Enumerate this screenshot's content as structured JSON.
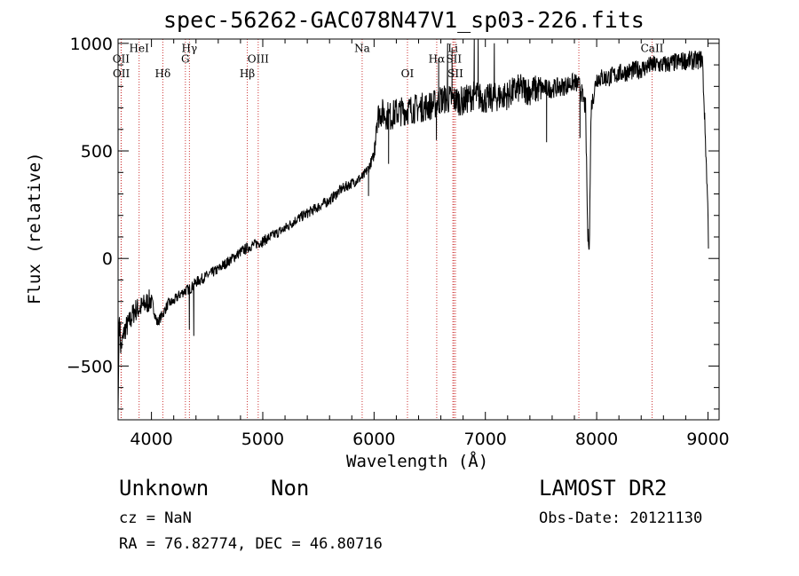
{
  "header": {
    "title": "spec-56262-GAC078N47V1_sp03-226.fits"
  },
  "footer": {
    "class": "Unknown",
    "subclass": "Non",
    "survey": "LAMOST DR2",
    "cz": "cz = NaN",
    "obs_date": "Obs-Date: 20121130",
    "radec": "RA =  76.82774, DEC =  46.80716"
  },
  "chart_data": {
    "type": "line",
    "title": "spec-56262-GAC078N47V1_sp03-226.fits",
    "xlabel": "Wavelength (Å)",
    "ylabel": "Flux (relative)",
    "xlim": [
      3700,
      9100
    ],
    "ylim": [
      -750,
      1020
    ],
    "xticks": [
      4000,
      5000,
      6000,
      7000,
      8000,
      9000
    ],
    "yticks": [
      -500,
      0,
      500,
      1000
    ],
    "grid": false,
    "line_color": "#000000",
    "marker_color": "#cc3333",
    "spectrum_anchors": [
      [
        3700,
        -720
      ],
      [
        3710,
        -250
      ],
      [
        3725,
        -420
      ],
      [
        3760,
        -330
      ],
      [
        3800,
        -300
      ],
      [
        3850,
        -240
      ],
      [
        3900,
        -230
      ],
      [
        3950,
        -210
      ],
      [
        4000,
        -190
      ],
      [
        4050,
        -300
      ],
      [
        4100,
        -260
      ],
      [
        4150,
        -210
      ],
      [
        4200,
        -200
      ],
      [
        4250,
        -170
      ],
      [
        4300,
        -150
      ],
      [
        4350,
        -140
      ],
      [
        4400,
        -110
      ],
      [
        4500,
        -80
      ],
      [
        4600,
        -50
      ],
      [
        4700,
        -10
      ],
      [
        4800,
        30
      ],
      [
        4900,
        60
      ],
      [
        5000,
        80
      ],
      [
        5100,
        110
      ],
      [
        5200,
        140
      ],
      [
        5300,
        180
      ],
      [
        5400,
        210
      ],
      [
        5500,
        240
      ],
      [
        5600,
        270
      ],
      [
        5700,
        320
      ],
      [
        5800,
        350
      ],
      [
        5900,
        380
      ],
      [
        5950,
        420
      ],
      [
        6000,
        480
      ],
      [
        6020,
        640
      ],
      [
        6050,
        680
      ],
      [
        6100,
        670
      ],
      [
        6150,
        660
      ],
      [
        6200,
        680
      ],
      [
        6300,
        690
      ],
      [
        6400,
        700
      ],
      [
        6500,
        710
      ],
      [
        6560,
        720
      ],
      [
        6600,
        740
      ],
      [
        6700,
        740
      ],
      [
        6800,
        730
      ],
      [
        6900,
        760
      ],
      [
        7000,
        740
      ],
      [
        7100,
        750
      ],
      [
        7200,
        760
      ],
      [
        7300,
        790
      ],
      [
        7400,
        780
      ],
      [
        7500,
        790
      ],
      [
        7600,
        790
      ],
      [
        7700,
        800
      ],
      [
        7800,
        820
      ],
      [
        7850,
        800
      ],
      [
        7900,
        700
      ],
      [
        7920,
        100
      ],
      [
        7935,
        80
      ],
      [
        7950,
        700
      ],
      [
        8000,
        840
      ],
      [
        8100,
        840
      ],
      [
        8200,
        860
      ],
      [
        8300,
        870
      ],
      [
        8400,
        880
      ],
      [
        8500,
        900
      ],
      [
        8600,
        900
      ],
      [
        8700,
        910
      ],
      [
        8800,
        920
      ],
      [
        8900,
        920
      ],
      [
        8950,
        930
      ],
      [
        9000,
        230
      ],
      [
        9005,
        0
      ]
    ],
    "spectrum_spikes": [
      [
        4340,
        -330
      ],
      [
        4380,
        -360
      ],
      [
        5950,
        290
      ],
      [
        6130,
        440
      ],
      [
        6560,
        550
      ],
      [
        6580,
        930
      ],
      [
        6660,
        1000
      ],
      [
        6700,
        980
      ],
      [
        6900,
        1030
      ],
      [
        6935,
        1020
      ],
      [
        7080,
        1000
      ],
      [
        7550,
        540
      ],
      [
        7850,
        560
      ]
    ],
    "lines": [
      {
        "label": "OII",
        "wavelength": 3727,
        "label_y": 910
      },
      {
        "label": "OII",
        "wavelength": 3729,
        "label_y": 842
      },
      {
        "label": "HeI",
        "wavelength": 3889,
        "label_y": 960
      },
      {
        "label": "Hδ",
        "wavelength": 4102,
        "label_y": 842
      },
      {
        "label": "Hγ",
        "wavelength": 4341,
        "label_y": 960
      },
      {
        "label": "G",
        "wavelength": 4305,
        "label_y": 910
      },
      {
        "label": "OIII",
        "wavelength": 4959,
        "label_y": 910
      },
      {
        "label": "Hβ",
        "wavelength": 4861,
        "label_y": 842
      },
      {
        "label": "Na",
        "wavelength": 5893,
        "label_y": 960
      },
      {
        "label": "OI",
        "wavelength": 6300,
        "label_y": 842
      },
      {
        "label": "Hα",
        "wavelength": 6563,
        "label_y": 910
      },
      {
        "label": "SII",
        "wavelength": 6717,
        "label_y": 910
      },
      {
        "label": "Li",
        "wavelength": 6708,
        "label_y": 960
      },
      {
        "label": "SII",
        "wavelength": 6731,
        "label_y": 842
      },
      {
        "label": "CaII",
        "wavelength": 8498,
        "label_y": 960
      },
      {
        "label": "",
        "wavelength": 7840,
        "label_y": null
      }
    ]
  }
}
